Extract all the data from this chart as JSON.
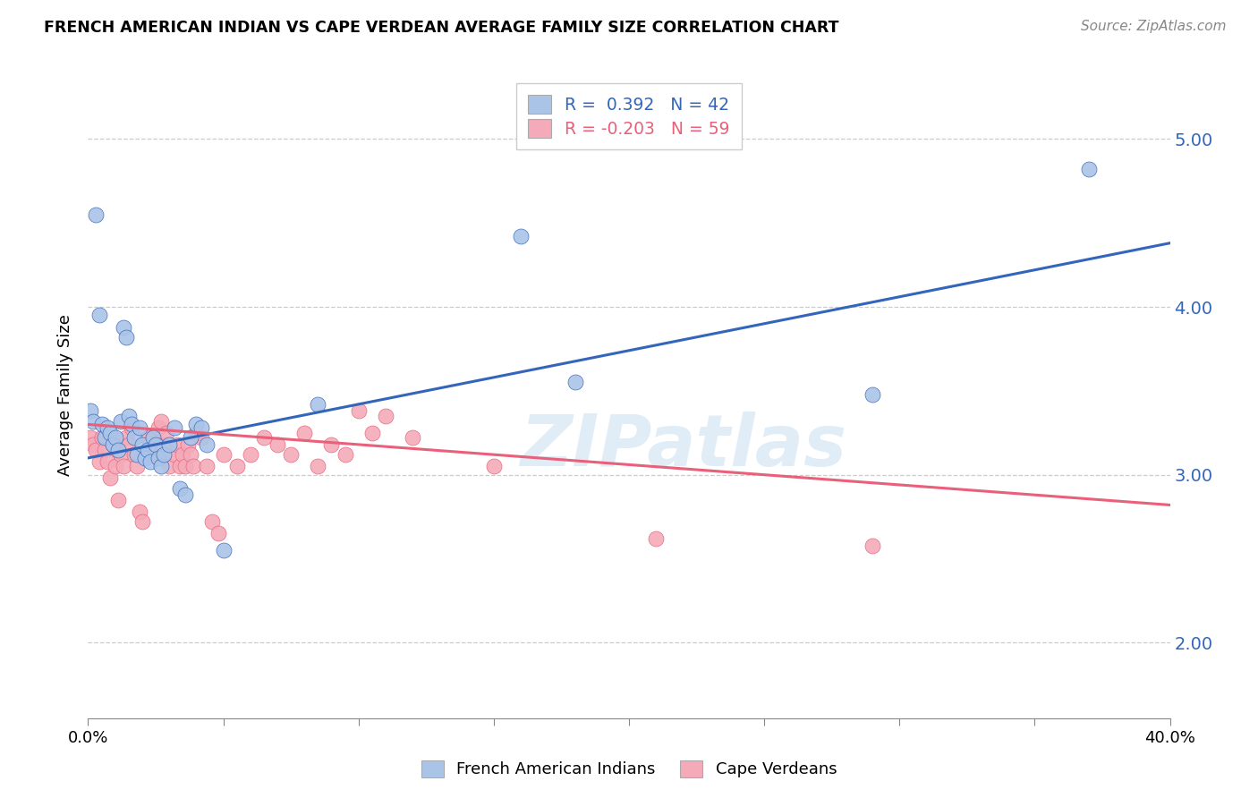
{
  "title": "FRENCH AMERICAN INDIAN VS CAPE VERDEAN AVERAGE FAMILY SIZE CORRELATION CHART",
  "source": "Source: ZipAtlas.com",
  "ylabel": "Average Family Size",
  "yticks": [
    2.0,
    3.0,
    4.0,
    5.0
  ],
  "xlim": [
    0.0,
    0.4
  ],
  "ylim": [
    1.55,
    5.4
  ],
  "watermark": "ZIPatlas",
  "legend_R1": "R =  0.392   N = 42",
  "legend_R2": "R = -0.203   N = 59",
  "blue_color": "#aac4e8",
  "pink_color": "#f4aab8",
  "blue_line_color": "#3366bb",
  "pink_line_color": "#e8607a",
  "legend_label1": "French American Indians",
  "legend_label2": "Cape Verdeans",
  "blue_scatter": [
    [
      0.001,
      3.38
    ],
    [
      0.002,
      3.32
    ],
    [
      0.003,
      4.55
    ],
    [
      0.004,
      3.95
    ],
    [
      0.005,
      3.3
    ],
    [
      0.006,
      3.22
    ],
    [
      0.007,
      3.28
    ],
    [
      0.008,
      3.25
    ],
    [
      0.009,
      3.18
    ],
    [
      0.01,
      3.22
    ],
    [
      0.011,
      3.15
    ],
    [
      0.012,
      3.32
    ],
    [
      0.013,
      3.88
    ],
    [
      0.014,
      3.82
    ],
    [
      0.015,
      3.35
    ],
    [
      0.016,
      3.3
    ],
    [
      0.017,
      3.22
    ],
    [
      0.018,
      3.12
    ],
    [
      0.019,
      3.28
    ],
    [
      0.02,
      3.18
    ],
    [
      0.021,
      3.1
    ],
    [
      0.022,
      3.15
    ],
    [
      0.023,
      3.08
    ],
    [
      0.024,
      3.22
    ],
    [
      0.025,
      3.18
    ],
    [
      0.026,
      3.1
    ],
    [
      0.027,
      3.05
    ],
    [
      0.028,
      3.12
    ],
    [
      0.03,
      3.18
    ],
    [
      0.032,
      3.28
    ],
    [
      0.034,
      2.92
    ],
    [
      0.036,
      2.88
    ],
    [
      0.038,
      3.22
    ],
    [
      0.04,
      3.3
    ],
    [
      0.042,
      3.28
    ],
    [
      0.044,
      3.18
    ],
    [
      0.05,
      2.55
    ],
    [
      0.085,
      3.42
    ],
    [
      0.16,
      4.42
    ],
    [
      0.18,
      3.55
    ],
    [
      0.29,
      3.48
    ],
    [
      0.37,
      4.82
    ]
  ],
  "pink_scatter": [
    [
      0.001,
      3.22
    ],
    [
      0.002,
      3.18
    ],
    [
      0.003,
      3.15
    ],
    [
      0.004,
      3.08
    ],
    [
      0.005,
      3.22
    ],
    [
      0.006,
      3.15
    ],
    [
      0.007,
      3.08
    ],
    [
      0.008,
      2.98
    ],
    [
      0.009,
      3.18
    ],
    [
      0.01,
      3.05
    ],
    [
      0.011,
      2.85
    ],
    [
      0.012,
      3.12
    ],
    [
      0.013,
      3.05
    ],
    [
      0.014,
      3.22
    ],
    [
      0.015,
      3.18
    ],
    [
      0.016,
      3.28
    ],
    [
      0.017,
      3.12
    ],
    [
      0.018,
      3.05
    ],
    [
      0.019,
      2.78
    ],
    [
      0.02,
      2.72
    ],
    [
      0.022,
      3.22
    ],
    [
      0.023,
      3.18
    ],
    [
      0.024,
      3.22
    ],
    [
      0.025,
      3.12
    ],
    [
      0.026,
      3.28
    ],
    [
      0.027,
      3.32
    ],
    [
      0.028,
      3.18
    ],
    [
      0.029,
      3.25
    ],
    [
      0.03,
      3.05
    ],
    [
      0.032,
      3.12
    ],
    [
      0.033,
      3.18
    ],
    [
      0.034,
      3.05
    ],
    [
      0.035,
      3.12
    ],
    [
      0.036,
      3.05
    ],
    [
      0.037,
      3.18
    ],
    [
      0.038,
      3.12
    ],
    [
      0.039,
      3.05
    ],
    [
      0.04,
      3.25
    ],
    [
      0.042,
      3.22
    ],
    [
      0.044,
      3.05
    ],
    [
      0.046,
      2.72
    ],
    [
      0.048,
      2.65
    ],
    [
      0.05,
      3.12
    ],
    [
      0.055,
      3.05
    ],
    [
      0.06,
      3.12
    ],
    [
      0.065,
      3.22
    ],
    [
      0.07,
      3.18
    ],
    [
      0.075,
      3.12
    ],
    [
      0.08,
      3.25
    ],
    [
      0.085,
      3.05
    ],
    [
      0.09,
      3.18
    ],
    [
      0.095,
      3.12
    ],
    [
      0.1,
      3.38
    ],
    [
      0.105,
      3.25
    ],
    [
      0.11,
      3.35
    ],
    [
      0.12,
      3.22
    ],
    [
      0.15,
      3.05
    ],
    [
      0.21,
      2.62
    ],
    [
      0.29,
      2.58
    ]
  ],
  "blue_line_x": [
    0.0,
    0.4
  ],
  "blue_line_y": [
    3.1,
    4.38
  ],
  "pink_line_x": [
    0.0,
    0.4
  ],
  "pink_line_y": [
    3.3,
    2.82
  ],
  "xtick_positions": [
    0.0,
    0.05,
    0.1,
    0.15,
    0.2,
    0.25,
    0.3,
    0.35,
    0.4
  ],
  "xtick_labels_show": [
    "0.0%",
    "",
    "",
    "",
    "",
    "",
    "",
    "",
    "40.0%"
  ]
}
